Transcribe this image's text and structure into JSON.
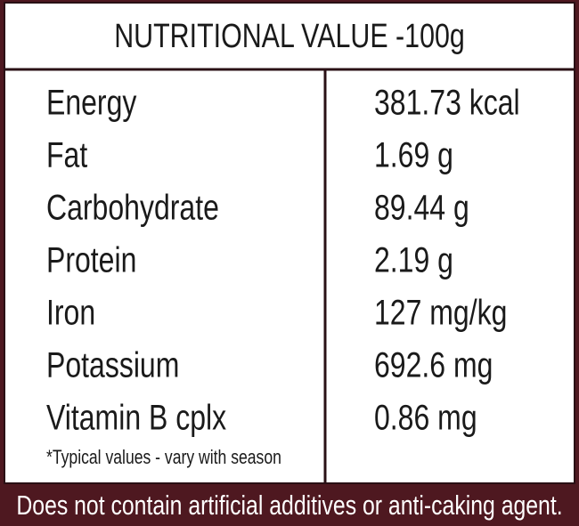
{
  "header": {
    "title": "NUTRITIONAL VALUE -100g"
  },
  "table": {
    "rows": [
      [
        "Energy",
        "381.73 kcal"
      ],
      [
        "Fat",
        "1.69 g"
      ],
      [
        "Carbohydrate",
        "89.44 g"
      ],
      [
        "Protein",
        "2.19 g"
      ],
      [
        "Iron",
        "127 mg/kg"
      ],
      [
        "Potassium",
        "692.6 mg"
      ],
      [
        "Vitamin B cplx",
        "0.86 mg"
      ]
    ],
    "note": "*Typical values - vary with season"
  },
  "footer": {
    "text": "Does not contain artificial additives or anti-caking agent."
  }
}
